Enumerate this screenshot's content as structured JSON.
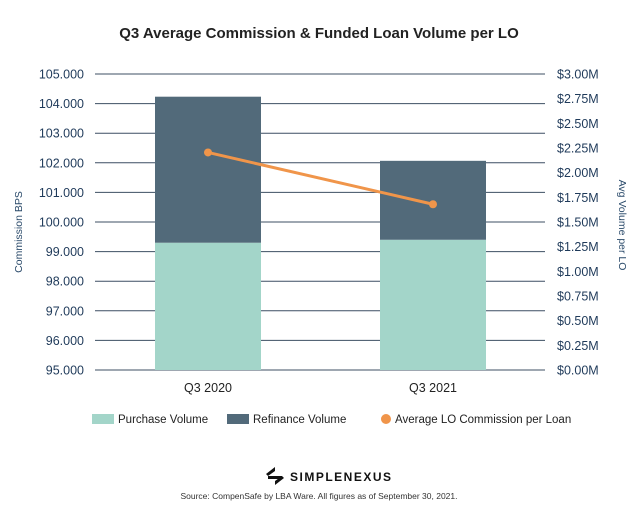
{
  "chart_data": {
    "type": "bar",
    "title": "Q3 Average Commission & Funded Loan Volume per LO",
    "categories": [
      "Q3 2020",
      "Q3 2021"
    ],
    "series": [
      {
        "name": "Purchase Volume",
        "kind": "stacked-bar",
        "axis": "right",
        "color": "#a3d5c9",
        "values": [
          1.29,
          1.32
        ]
      },
      {
        "name": "Refinance Volume",
        "kind": "stacked-bar",
        "axis": "right",
        "color": "#526a7a",
        "values": [
          1.48,
          0.8
        ]
      },
      {
        "name": "Average LO Commission per Loan",
        "kind": "line",
        "axis": "left",
        "color": "#f0954a",
        "values": [
          102.35,
          100.6
        ]
      }
    ],
    "y_left": {
      "label": "Commission BPS",
      "ylim": [
        95.0,
        105.0
      ],
      "ticks": [
        "95.000",
        "96.000",
        "97.000",
        "98.000",
        "99.000",
        "100.000",
        "101.000",
        "102.000",
        "103.000",
        "104.000",
        "105.000"
      ]
    },
    "y_right": {
      "label": "Avg Volume per LO",
      "ylim": [
        0,
        3.0
      ],
      "ticks": [
        "$0.00M",
        "$0.25M",
        "$0.50M",
        "$0.75M",
        "$1.00M",
        "$1.25M",
        "$1.50M",
        "$1.75M",
        "$2.00M",
        "$2.25M",
        "$2.50M",
        "$2.75M",
        "$3.00M"
      ]
    },
    "grid": true,
    "legend_position": "bottom"
  },
  "brand": "SIMPLENEXUS",
  "source": "Source: CompenSafe by LBA Ware. All figures as of September 30, 2021.",
  "colors": {
    "axis_text": "#1f3a5a",
    "gridline": "#3d4f63"
  }
}
